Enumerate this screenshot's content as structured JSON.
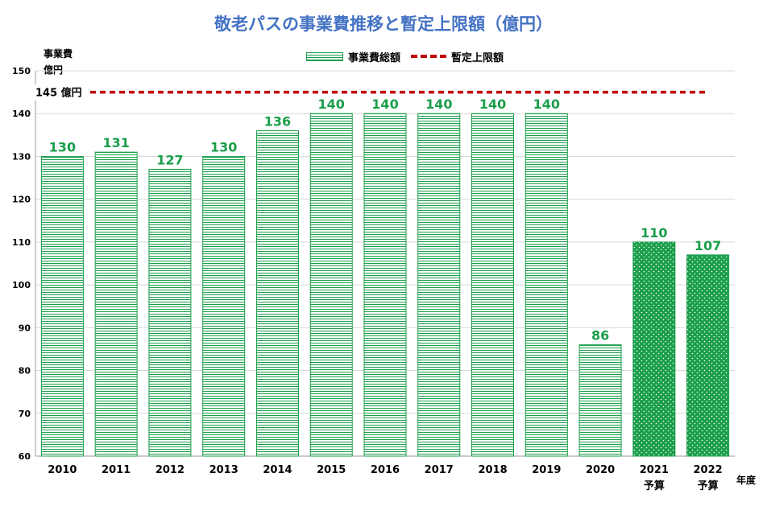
{
  "chart_data": {
    "type": "bar",
    "title": "敬老パスの事業費推移と暫定上限額（億円）",
    "ylabel_line1": "事業費",
    "ylabel_line2": "億円",
    "xunit": "年度",
    "ylim": [
      60,
      150
    ],
    "yticks": [
      60,
      70,
      80,
      90,
      100,
      110,
      120,
      130,
      140,
      150
    ],
    "categories": [
      "2010",
      "2011",
      "2012",
      "2013",
      "2014",
      "2015",
      "2016",
      "2017",
      "2018",
      "2019",
      "2020",
      "2021",
      "2022"
    ],
    "category_sublabels": [
      "",
      "",
      "",
      "",
      "",
      "",
      "",
      "",
      "",
      "",
      "",
      "予算",
      "予算"
    ],
    "series": [
      {
        "name": "事業費総額",
        "values": [
          130,
          131,
          127,
          130,
          136,
          140,
          140,
          140,
          140,
          140,
          86,
          110,
          107
        ]
      }
    ],
    "budget_flags": [
      false,
      false,
      false,
      false,
      false,
      false,
      false,
      false,
      false,
      false,
      false,
      true,
      true
    ],
    "reference_line": {
      "name": "暫定上限額",
      "value": 145,
      "label": "145 億円"
    },
    "colors": {
      "bar": "#1a9e4a",
      "label": "#1a9e4a",
      "ref": "#c00000",
      "title": "#4472c4",
      "grid": "#d9d9d9"
    },
    "grid": true,
    "legend_position": "top"
  }
}
